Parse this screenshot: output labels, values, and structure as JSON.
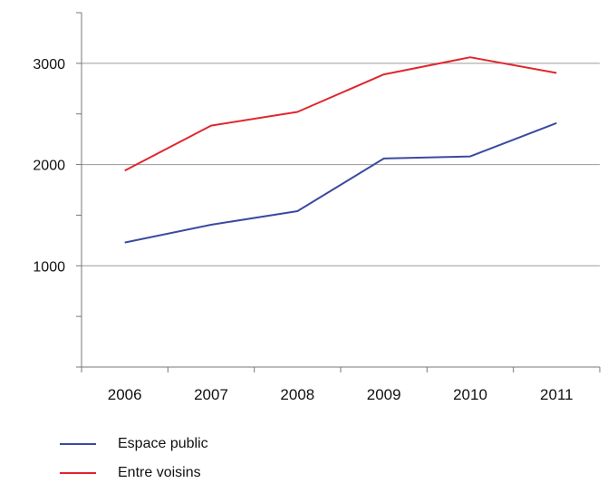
{
  "chart_data": {
    "type": "line",
    "categories": [
      "2006",
      "2007",
      "2008",
      "2009",
      "2010",
      "2011"
    ],
    "series": [
      {
        "name": "Espace public",
        "color": "#3b4aa0",
        "values": [
          1230,
          1405,
          1540,
          2060,
          2080,
          2410
        ]
      },
      {
        "name": "Entre voisins",
        "color": "#e0262e",
        "values": [
          1940,
          2385,
          2520,
          2890,
          3060,
          2905
        ]
      }
    ],
    "yticks": [
      "1000",
      "2000",
      "3000"
    ],
    "ylim": [
      0,
      3500
    ],
    "grid": true,
    "legend_position": "bottom-left"
  }
}
